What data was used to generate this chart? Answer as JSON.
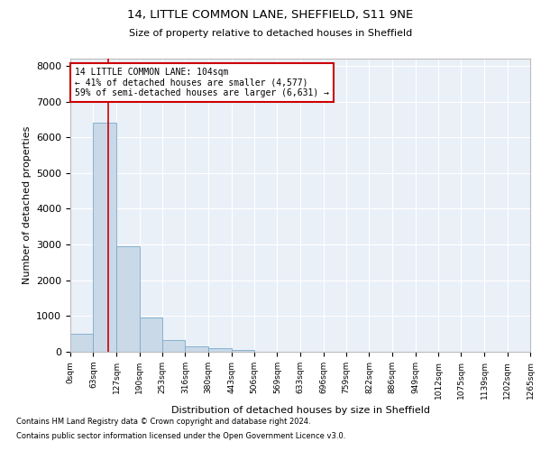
{
  "title": "14, LITTLE COMMON LANE, SHEFFIELD, S11 9NE",
  "subtitle": "Size of property relative to detached houses in Sheffield",
  "xlabel": "Distribution of detached houses by size in Sheffield",
  "ylabel": "Number of detached properties",
  "bar_color": "#c9d9e8",
  "bar_edge_color": "#7aaac8",
  "background_color": "#eaf0f8",
  "grid_color": "#ffffff",
  "annotation_box_color": "#cc0000",
  "property_line_color": "#cc0000",
  "property_size": 104,
  "annotation_title": "14 LITTLE COMMON LANE: 104sqm",
  "annotation_line1": "← 41% of detached houses are smaller (4,577)",
  "annotation_line2": "59% of semi-detached houses are larger (6,631) →",
  "footnote1": "Contains HM Land Registry data © Crown copyright and database right 2024.",
  "footnote2": "Contains public sector information licensed under the Open Government Licence v3.0.",
  "bins": [
    0,
    63,
    127,
    190,
    253,
    316,
    380,
    443,
    506,
    569,
    633,
    696,
    759,
    822,
    886,
    949,
    1012,
    1075,
    1139,
    1202,
    1265
  ],
  "counts": [
    500,
    6400,
    2950,
    960,
    330,
    150,
    100,
    60,
    0,
    0,
    0,
    0,
    0,
    0,
    0,
    0,
    0,
    0,
    0,
    0
  ],
  "ylim": [
    0,
    8200
  ],
  "yticks": [
    0,
    1000,
    2000,
    3000,
    4000,
    5000,
    6000,
    7000,
    8000
  ]
}
